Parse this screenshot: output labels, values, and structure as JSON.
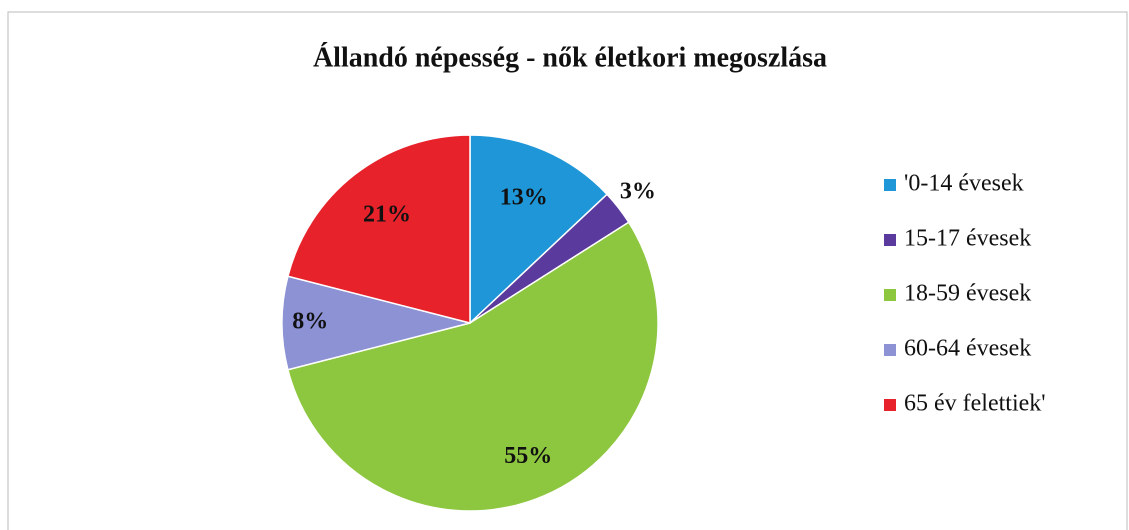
{
  "chart_data": {
    "type": "pie",
    "title": "Állandó népesség - nők életkori megoszlása",
    "categories": [
      "'0-14 évesek",
      "15-17 évesek",
      "18-59 évesek",
      "60-64 évesek",
      "65 év felettiek'"
    ],
    "values": [
      13,
      3,
      55,
      8,
      21
    ],
    "value_labels": [
      "13%",
      "3%",
      "55%",
      "8%",
      "21%"
    ],
    "colors": [
      "#1e96d8",
      "#5a3a9c",
      "#8dc63f",
      "#8c92d4",
      "#e8222b"
    ],
    "legend": "right"
  }
}
